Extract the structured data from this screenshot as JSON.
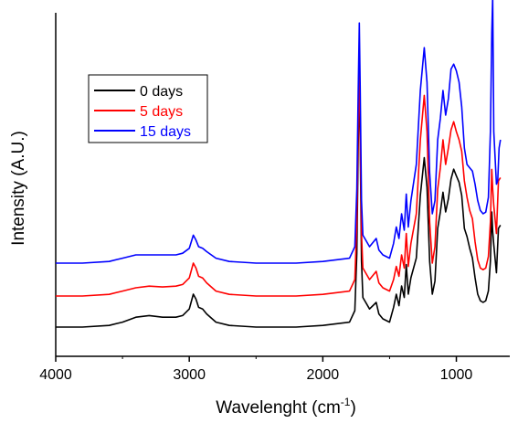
{
  "chart_data": {
    "type": "line",
    "title": "",
    "xlabel": "Wavelenght (cm",
    "xlabel_sup": "-1",
    "xlabel_end": ")",
    "ylabel": "Intensity (A.U.)",
    "xlim": [
      4000,
      600
    ],
    "x_reversed": true,
    "x_ticks": [
      4000,
      3000,
      2000,
      1000
    ],
    "x_tick_labels": [
      "4000",
      "3000",
      "2000",
      "1000"
    ],
    "y_ticks_shown": false,
    "grid": false,
    "legend_position": "top-left",
    "series": [
      {
        "name": "0 days",
        "color": "#000000",
        "points": [
          [
            4000,
            0.0
          ],
          [
            3800,
            0.0
          ],
          [
            3600,
            0.01
          ],
          [
            3500,
            0.03
          ],
          [
            3400,
            0.06
          ],
          [
            3300,
            0.07
          ],
          [
            3200,
            0.06
          ],
          [
            3100,
            0.06
          ],
          [
            3050,
            0.07
          ],
          [
            3000,
            0.11
          ],
          [
            2970,
            0.2
          ],
          [
            2950,
            0.17
          ],
          [
            2930,
            0.12
          ],
          [
            2900,
            0.11
          ],
          [
            2870,
            0.08
          ],
          [
            2800,
            0.03
          ],
          [
            2700,
            0.01
          ],
          [
            2500,
            0.0
          ],
          [
            2200,
            0.0
          ],
          [
            2000,
            0.01
          ],
          [
            1800,
            0.03
          ],
          [
            1760,
            0.1
          ],
          [
            1745,
            0.45
          ],
          [
            1735,
            1.1
          ],
          [
            1727,
            1.54
          ],
          [
            1720,
            1.1
          ],
          [
            1710,
            0.4
          ],
          [
            1700,
            0.18
          ],
          [
            1650,
            0.11
          ],
          [
            1600,
            0.15
          ],
          [
            1580,
            0.08
          ],
          [
            1550,
            0.05
          ],
          [
            1500,
            0.03
          ],
          [
            1470,
            0.12
          ],
          [
            1450,
            0.2
          ],
          [
            1430,
            0.13
          ],
          [
            1410,
            0.25
          ],
          [
            1390,
            0.18
          ],
          [
            1375,
            0.38
          ],
          [
            1360,
            0.2
          ],
          [
            1340,
            0.3
          ],
          [
            1300,
            0.42
          ],
          [
            1270,
            0.8
          ],
          [
            1240,
            1.03
          ],
          [
            1220,
            0.85
          ],
          [
            1200,
            0.4
          ],
          [
            1180,
            0.2
          ],
          [
            1160,
            0.28
          ],
          [
            1140,
            0.6
          ],
          [
            1120,
            0.7
          ],
          [
            1100,
            0.82
          ],
          [
            1080,
            0.7
          ],
          [
            1060,
            0.78
          ],
          [
            1040,
            0.9
          ],
          [
            1020,
            0.96
          ],
          [
            1000,
            0.92
          ],
          [
            980,
            0.88
          ],
          [
            960,
            0.8
          ],
          [
            940,
            0.6
          ],
          [
            920,
            0.55
          ],
          [
            900,
            0.48
          ],
          [
            880,
            0.42
          ],
          [
            860,
            0.3
          ],
          [
            840,
            0.2
          ],
          [
            820,
            0.16
          ],
          [
            800,
            0.15
          ],
          [
            780,
            0.16
          ],
          [
            760,
            0.22
          ],
          [
            745,
            0.4
          ],
          [
            735,
            0.7
          ],
          [
            728,
            0.58
          ],
          [
            720,
            0.5
          ],
          [
            700,
            0.33
          ],
          [
            685,
            0.6
          ],
          [
            670,
            0.62
          ]
        ]
      },
      {
        "name": "5 days",
        "color": "#ff0000",
        "points": [
          [
            4000,
            0.0
          ],
          [
            3800,
            0.0
          ],
          [
            3600,
            0.01
          ],
          [
            3500,
            0.03
          ],
          [
            3400,
            0.05
          ],
          [
            3300,
            0.06
          ],
          [
            3200,
            0.055
          ],
          [
            3100,
            0.06
          ],
          [
            3050,
            0.07
          ],
          [
            3000,
            0.11
          ],
          [
            2970,
            0.2
          ],
          [
            2950,
            0.17
          ],
          [
            2930,
            0.12
          ],
          [
            2900,
            0.11
          ],
          [
            2870,
            0.08
          ],
          [
            2800,
            0.03
          ],
          [
            2700,
            0.01
          ],
          [
            2500,
            0.0
          ],
          [
            2200,
            0.0
          ],
          [
            2000,
            0.01
          ],
          [
            1800,
            0.03
          ],
          [
            1760,
            0.1
          ],
          [
            1745,
            0.45
          ],
          [
            1735,
            1.05
          ],
          [
            1727,
            1.39
          ],
          [
            1720,
            1.0
          ],
          [
            1710,
            0.38
          ],
          [
            1700,
            0.17
          ],
          [
            1650,
            0.1
          ],
          [
            1600,
            0.15
          ],
          [
            1580,
            0.08
          ],
          [
            1550,
            0.05
          ],
          [
            1500,
            0.03
          ],
          [
            1470,
            0.1
          ],
          [
            1450,
            0.18
          ],
          [
            1430,
            0.12
          ],
          [
            1410,
            0.25
          ],
          [
            1390,
            0.17
          ],
          [
            1375,
            0.38
          ],
          [
            1360,
            0.18
          ],
          [
            1340,
            0.32
          ],
          [
            1300,
            0.5
          ],
          [
            1270,
            0.95
          ],
          [
            1240,
            1.22
          ],
          [
            1220,
            1.0
          ],
          [
            1200,
            0.45
          ],
          [
            1180,
            0.2
          ],
          [
            1160,
            0.3
          ],
          [
            1140,
            0.65
          ],
          [
            1120,
            0.78
          ],
          [
            1100,
            0.95
          ],
          [
            1080,
            0.8
          ],
          [
            1060,
            0.9
          ],
          [
            1040,
            1.01
          ],
          [
            1020,
            1.06
          ],
          [
            1000,
            1.0
          ],
          [
            980,
            0.95
          ],
          [
            960,
            0.88
          ],
          [
            940,
            0.7
          ],
          [
            920,
            0.6
          ],
          [
            900,
            0.52
          ],
          [
            880,
            0.47
          ],
          [
            860,
            0.33
          ],
          [
            840,
            0.22
          ],
          [
            820,
            0.17
          ],
          [
            800,
            0.16
          ],
          [
            780,
            0.17
          ],
          [
            760,
            0.24
          ],
          [
            745,
            0.45
          ],
          [
            735,
            0.77
          ],
          [
            728,
            0.65
          ],
          [
            720,
            0.55
          ],
          [
            700,
            0.38
          ],
          [
            685,
            0.7
          ],
          [
            670,
            0.72
          ]
        ]
      },
      {
        "name": "15 days",
        "color": "#0000ff",
        "points": [
          [
            4000,
            0.0
          ],
          [
            3800,
            0.0
          ],
          [
            3600,
            0.01
          ],
          [
            3500,
            0.03
          ],
          [
            3400,
            0.05
          ],
          [
            3300,
            0.05
          ],
          [
            3200,
            0.05
          ],
          [
            3100,
            0.05
          ],
          [
            3050,
            0.06
          ],
          [
            3000,
            0.09
          ],
          [
            2970,
            0.17
          ],
          [
            2950,
            0.14
          ],
          [
            2930,
            0.1
          ],
          [
            2900,
            0.09
          ],
          [
            2870,
            0.07
          ],
          [
            2800,
            0.03
          ],
          [
            2700,
            0.01
          ],
          [
            2500,
            0.0
          ],
          [
            2200,
            0.0
          ],
          [
            2000,
            0.01
          ],
          [
            1800,
            0.03
          ],
          [
            1760,
            0.1
          ],
          [
            1745,
            0.45
          ],
          [
            1735,
            1.05
          ],
          [
            1727,
            1.46
          ],
          [
            1720,
            1.05
          ],
          [
            1710,
            0.38
          ],
          [
            1700,
            0.17
          ],
          [
            1650,
            0.1
          ],
          [
            1600,
            0.15
          ],
          [
            1580,
            0.08
          ],
          [
            1550,
            0.05
          ],
          [
            1500,
            0.03
          ],
          [
            1470,
            0.12
          ],
          [
            1450,
            0.22
          ],
          [
            1430,
            0.15
          ],
          [
            1410,
            0.3
          ],
          [
            1390,
            0.2
          ],
          [
            1375,
            0.42
          ],
          [
            1360,
            0.22
          ],
          [
            1340,
            0.38
          ],
          [
            1300,
            0.6
          ],
          [
            1270,
            1.05
          ],
          [
            1240,
            1.31
          ],
          [
            1220,
            1.1
          ],
          [
            1200,
            0.55
          ],
          [
            1180,
            0.3
          ],
          [
            1160,
            0.38
          ],
          [
            1140,
            0.75
          ],
          [
            1120,
            0.88
          ],
          [
            1100,
            1.05
          ],
          [
            1080,
            0.9
          ],
          [
            1060,
            1.0
          ],
          [
            1040,
            1.18
          ],
          [
            1020,
            1.21
          ],
          [
            1000,
            1.17
          ],
          [
            980,
            1.1
          ],
          [
            960,
            0.95
          ],
          [
            940,
            0.7
          ],
          [
            920,
            0.6
          ],
          [
            900,
            0.58
          ],
          [
            880,
            0.56
          ],
          [
            860,
            0.48
          ],
          [
            840,
            0.38
          ],
          [
            820,
            0.32
          ],
          [
            800,
            0.3
          ],
          [
            780,
            0.31
          ],
          [
            760,
            0.4
          ],
          [
            745,
            0.8
          ],
          [
            735,
            1.4
          ],
          [
            728,
            1.62
          ],
          [
            720,
            0.8
          ],
          [
            700,
            0.48
          ],
          [
            690,
            0.5
          ],
          [
            680,
            0.7
          ],
          [
            670,
            0.75
          ]
        ]
      }
    ]
  }
}
